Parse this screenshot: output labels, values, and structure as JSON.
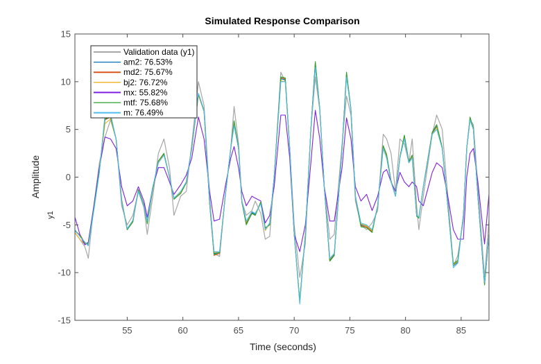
{
  "chart_data": {
    "type": "line",
    "title": "Simulated Response Comparison",
    "xlabel": "Time (seconds)",
    "ylabel": "Amplitude",
    "channel_label": "y1",
    "xlim": [
      50.3,
      87.5
    ],
    "ylim": [
      -15,
      15
    ],
    "xticks": [
      55,
      60,
      65,
      70,
      75,
      80,
      85
    ],
    "yticks": [
      -15,
      -10,
      -5,
      0,
      5,
      10,
      15
    ],
    "grid": false,
    "legend_position": "top-left",
    "x": [
      50.3,
      50.8,
      51.2,
      51.5,
      52.0,
      52.5,
      53.0,
      53.5,
      54.0,
      54.5,
      55.0,
      55.5,
      56.0,
      56.5,
      56.8,
      57.3,
      57.8,
      58.3,
      58.8,
      59.2,
      59.8,
      60.3,
      60.8,
      61.4,
      61.9,
      62.4,
      62.8,
      63.3,
      63.8,
      64.3,
      64.6,
      65.0,
      65.3,
      65.7,
      66.2,
      66.5,
      67.0,
      67.4,
      67.8,
      68.2,
      68.8,
      69.2,
      69.6,
      70.0,
      70.5,
      71.0,
      71.5,
      71.9,
      72.3,
      72.7,
      73.2,
      73.6,
      74.3,
      74.7,
      75.1,
      75.5,
      76.0,
      76.5,
      77.0,
      77.5,
      78.0,
      78.3,
      78.7,
      79.1,
      79.5,
      79.9,
      80.3,
      80.6,
      81.0,
      81.2,
      81.6,
      82.4,
      82.8,
      83.3,
      83.8,
      84.3,
      84.7,
      85.2,
      85.5,
      85.8,
      86.1,
      86.5,
      87.1,
      87.5
    ],
    "series": [
      {
        "name": "Validation data (y1)",
        "color": "#a6a6a6",
        "values": [
          -5.8,
          -6.6,
          -7.3,
          -8.5,
          -3.0,
          1.5,
          4.2,
          6.0,
          4.0,
          -3.0,
          -5.0,
          -4.0,
          -1.5,
          -3.2,
          -6.0,
          -2.0,
          2.5,
          4.0,
          1.0,
          -4.0,
          -2.0,
          -1.5,
          3.5,
          10.0,
          7.5,
          -2.0,
          -8.0,
          -8.3,
          -2.0,
          3.0,
          7.4,
          3.5,
          -2.5,
          -4.0,
          -3.5,
          -2.5,
          -3.8,
          -6.5,
          -6.2,
          0,
          11.0,
          10.0,
          3.0,
          -5.0,
          -10.5,
          -7.0,
          5.0,
          10.5,
          7.0,
          -1.0,
          -6.5,
          -6.0,
          3.5,
          8.5,
          6.5,
          -2.5,
          -5.0,
          -5.5,
          -4.8,
          -3.5,
          4.5,
          4.0,
          2.5,
          -1.5,
          4.0,
          3.5,
          1.5,
          4.0,
          -3.0,
          -5.5,
          -2.0,
          4.5,
          6.5,
          5.0,
          -2.0,
          -9.3,
          -8.2,
          -4.5,
          3.0,
          6.0,
          5.5,
          -1.0,
          -10.5,
          -4.5
        ]
      },
      {
        "name": "am2: 76.53%",
        "color": "#0072bd",
        "values": [
          -5.6,
          -6.2,
          -6.9,
          -7.1,
          -3.4,
          0.6,
          6.2,
          6.4,
          4.0,
          -2.5,
          -5.5,
          -4.6,
          -1.4,
          -3.0,
          -4.7,
          -1.1,
          1.6,
          2.4,
          0,
          -2.3,
          -1.6,
          -0.5,
          3.0,
          8.7,
          7.0,
          -2.6,
          -8.0,
          -7.9,
          -2.0,
          3.0,
          5.6,
          3.0,
          -2.6,
          -4.8,
          -3.7,
          -3.9,
          -2.7,
          -5.4,
          -4.9,
          0,
          10.3,
          10.2,
          3.0,
          -6.0,
          -13.1,
          -6.0,
          5.0,
          11.8,
          7.0,
          -1.0,
          -8.7,
          -8.1,
          3.0,
          10.7,
          7.0,
          -2.0,
          -5.0,
          -5.1,
          -5.6,
          -3.0,
          3.2,
          2.2,
          -0.4,
          -2.0,
          2.1,
          4.2,
          1.6,
          2.2,
          -4.0,
          -4.3,
          -1.0,
          4.6,
          5.3,
          3.0,
          -3.0,
          -9.3,
          -8.9,
          -4.0,
          3.0,
          6.1,
          5.0,
          -2.0,
          -11.1,
          -6.0
        ]
      },
      {
        "name": "md2: 75.67%",
        "color": "#d95319",
        "values": [
          -5.6,
          -6.1,
          -6.9,
          -7.0,
          -3.3,
          0.7,
          6.0,
          6.3,
          4.0,
          -2.4,
          -5.5,
          -4.7,
          -1.3,
          -2.9,
          -4.8,
          -1.2,
          1.6,
          2.4,
          0,
          -2.3,
          -1.7,
          -0.6,
          3.1,
          8.6,
          6.9,
          -2.7,
          -8.2,
          -8.0,
          -2.0,
          3.0,
          5.8,
          3.1,
          -2.6,
          -4.9,
          -3.8,
          -4.0,
          -2.6,
          -5.4,
          -5.0,
          0,
          10.4,
          10.3,
          3.0,
          -6.0,
          -13.0,
          -6.0,
          5.0,
          12.0,
          7.1,
          -1.0,
          -8.8,
          -8.2,
          3.0,
          10.9,
          7.1,
          -2.0,
          -5.1,
          -5.2,
          -5.7,
          -3.0,
          3.2,
          2.3,
          -0.4,
          -2.0,
          2.1,
          4.3,
          1.6,
          2.3,
          -4.0,
          -4.3,
          -1.0,
          4.7,
          5.5,
          3.1,
          -3.0,
          -9.2,
          -8.8,
          -4.0,
          3.0,
          6.2,
          5.1,
          -2.0,
          -11.2,
          -6.0
        ]
      },
      {
        "name": "bj2: 76.72%",
        "color": "#edb120",
        "values": [
          -5.8,
          -6.6,
          -7.0,
          -7.0,
          -3.2,
          0.8,
          5.6,
          6.1,
          4.0,
          -2.3,
          -5.4,
          -4.6,
          -1.4,
          -3.0,
          -4.7,
          -1.1,
          1.6,
          2.3,
          0,
          -2.2,
          -1.6,
          -0.5,
          3.0,
          8.6,
          7.0,
          -2.5,
          -7.9,
          -7.8,
          -2.0,
          3.0,
          5.5,
          3.0,
          -2.5,
          -4.7,
          -3.6,
          -3.8,
          -2.7,
          -5.6,
          -4.9,
          0,
          10.1,
          10.0,
          3.0,
          -6.0,
          -13.0,
          -6.0,
          5.0,
          11.6,
          7.0,
          -1.0,
          -8.6,
          -8.0,
          3.0,
          10.6,
          7.0,
          -2.0,
          -4.9,
          -5.1,
          -5.6,
          -3.0,
          3.1,
          2.1,
          -0.5,
          -2.0,
          2.0,
          4.1,
          1.5,
          2.1,
          -4.0,
          -4.2,
          -1.0,
          4.5,
          5.2,
          3.0,
          -3.0,
          -9.2,
          -8.8,
          -4.0,
          3.0,
          6.0,
          5.0,
          -2.0,
          -11.0,
          -6.0
        ]
      },
      {
        "name": "mx: 55.82%",
        "color": "#7e1fe0",
        "values": [
          -4.2,
          -6.2,
          -7.1,
          -6.8,
          -3.0,
          1.0,
          4.2,
          4.0,
          3.0,
          -1.0,
          -3.0,
          -2.5,
          -1.0,
          -2.5,
          -4.2,
          -1.0,
          1.0,
          1.0,
          -0.5,
          -1.8,
          -0.8,
          0.2,
          2.0,
          6.3,
          4.0,
          -1.5,
          -4.6,
          -4.4,
          -1.0,
          2.0,
          3.2,
          1.0,
          -1.5,
          -3.0,
          -2.0,
          -2.2,
          -2.5,
          -4.8,
          -4.0,
          -1.0,
          6.5,
          6.5,
          2.0,
          -6.0,
          -7.8,
          -5.0,
          1.5,
          7.0,
          4.0,
          -1.0,
          -4.6,
          -4.6,
          1.0,
          6.2,
          4.0,
          -1.0,
          -2.5,
          -1.8,
          -3.5,
          -2.0,
          0.5,
          0.8,
          -0.5,
          -1.5,
          0.5,
          -0.5,
          -1.0,
          -0.5,
          -1.0,
          -2.5,
          -3.0,
          0.5,
          1.5,
          1.0,
          -2.0,
          -5.5,
          -6.5,
          -6.5,
          0.0,
          2.5,
          3.0,
          -0.5,
          -7.0,
          -1.8
        ]
      },
      {
        "name": "mtf: 75.68%",
        "color": "#2ca02c",
        "values": [
          -5.6,
          -6.2,
          -6.9,
          -7.0,
          -3.3,
          0.7,
          6.1,
          6.3,
          4.0,
          -2.4,
          -5.5,
          -4.7,
          -1.3,
          -2.9,
          -4.9,
          -1.2,
          1.7,
          2.5,
          0,
          -2.3,
          -1.7,
          -0.6,
          3.1,
          8.7,
          6.9,
          -2.7,
          -8.1,
          -7.9,
          -2.0,
          3.0,
          5.9,
          3.1,
          -2.6,
          -5.0,
          -3.8,
          -4.0,
          -2.6,
          -5.3,
          -5.0,
          0,
          10.5,
          10.4,
          3.0,
          -6.0,
          -13.0,
          -6.0,
          5.0,
          12.1,
          7.1,
          -1.0,
          -8.8,
          -8.2,
          3.0,
          11.0,
          7.1,
          -2.0,
          -5.2,
          -5.3,
          -5.8,
          -3.0,
          3.3,
          2.4,
          -0.4,
          -2.0,
          2.1,
          4.4,
          1.6,
          2.3,
          -4.1,
          -4.3,
          -1.0,
          4.7,
          5.5,
          3.1,
          -3.0,
          -9.1,
          -8.7,
          -4.0,
          3.0,
          6.3,
          5.1,
          -2.0,
          -11.3,
          -6.0
        ]
      },
      {
        "name": "m: 76.49%",
        "color": "#4dbeee",
        "values": [
          -5.5,
          -6.3,
          -6.8,
          -7.2,
          -3.5,
          0.5,
          6.5,
          6.6,
          4.0,
          -2.5,
          -5.4,
          -4.5,
          -1.5,
          -3.0,
          -4.6,
          -1.0,
          1.5,
          2.3,
          0,
          -2.2,
          -1.5,
          -0.5,
          3.0,
          8.8,
          7.0,
          -2.5,
          -7.8,
          -7.8,
          -2.0,
          3.0,
          5.4,
          3.0,
          -2.5,
          -4.6,
          -3.6,
          -3.8,
          -2.8,
          -5.5,
          -4.8,
          0,
          10.0,
          10.0,
          3.0,
          -6.0,
          -13.3,
          -6.0,
          5.0,
          11.5,
          7.0,
          -1.0,
          -8.5,
          -8.0,
          3.0,
          10.5,
          7.0,
          -2.0,
          -4.8,
          -5.0,
          -5.5,
          -3.0,
          3.0,
          2.0,
          -0.5,
          -2.0,
          2.0,
          4.0,
          1.5,
          2.0,
          -4.0,
          -4.2,
          -1.0,
          4.5,
          5.0,
          3.0,
          -3.0,
          -9.5,
          -9.0,
          -4.0,
          3.0,
          6.0,
          5.0,
          -2.0,
          -11.0,
          -6.0
        ]
      }
    ]
  }
}
